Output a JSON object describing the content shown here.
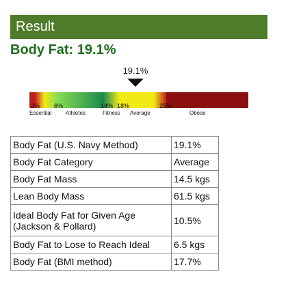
{
  "header": {
    "title": "Result"
  },
  "summary": {
    "title": "Body Fat: 19.1%"
  },
  "marker": {
    "value": "19.1%"
  },
  "scale": {
    "percent_labels": [
      "2%",
      "6%",
      "14%",
      "18%",
      "25%"
    ],
    "categories": [
      "Essential",
      "Athletes",
      "Fitness",
      "Average",
      "Obese"
    ],
    "colors": {
      "essential": "#c31e1e",
      "athletes": "#88dd55",
      "fitness": "#1a8a4a",
      "average": "#f2ea14",
      "obese": "#8b0f0f"
    }
  },
  "table": {
    "rows": [
      {
        "label": "Body Fat (U.S. Navy Method)",
        "value": "19.1%"
      },
      {
        "label": "Body Fat Category",
        "value": "Average"
      },
      {
        "label": "Body Fat Mass",
        "value": "14.5 kgs"
      },
      {
        "label": "Lean Body Mass",
        "value": "61.5 kgs"
      },
      {
        "label": "Ideal Body Fat for Given Age (Jackson & Pollard)",
        "value": "10.5%"
      },
      {
        "label": "Body Fat to Lose to Reach Ideal",
        "value": "6.5 kgs"
      },
      {
        "label": "Body Fat (BMI method)",
        "value": "17.7%"
      }
    ]
  }
}
